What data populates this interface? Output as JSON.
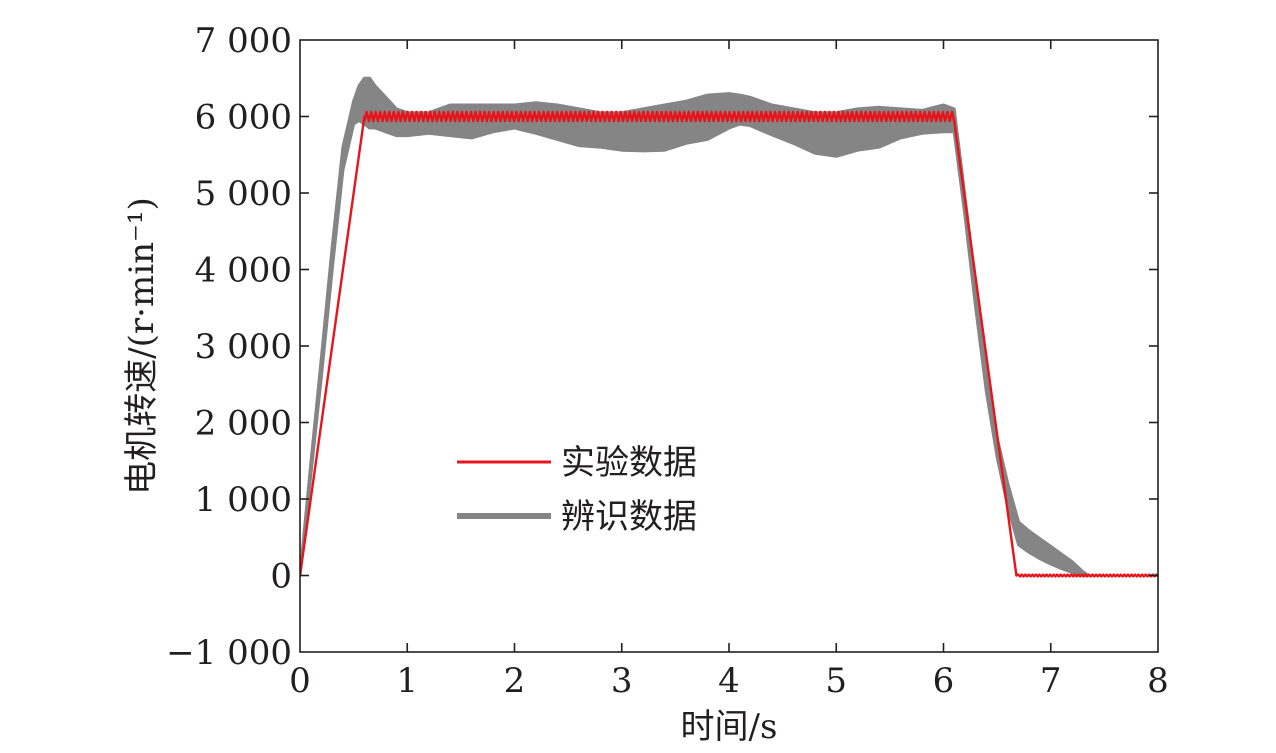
{
  "chart_data": {
    "type": "line",
    "title": "",
    "xlabel": "时间/s",
    "ylabel": "电机转速/(r·min⁻¹)",
    "xlim": [
      0,
      8
    ],
    "ylim": [
      -1000,
      7000
    ],
    "xticks": [
      0,
      1,
      2,
      3,
      4,
      5,
      6,
      7,
      8
    ],
    "yticks": [
      -1000,
      0,
      1000,
      2000,
      3000,
      4000,
      5000,
      6000,
      7000
    ],
    "xtick_labels": [
      "0",
      "1",
      "2",
      "3",
      "4",
      "5",
      "6",
      "7",
      "8"
    ],
    "ytick_labels": [
      "−1 000",
      "0",
      "1 000",
      "2 000",
      "3 000",
      "4 000",
      "5 000",
      "6 000",
      "7 000"
    ],
    "grid": false,
    "legend_position": "center-left",
    "series": [
      {
        "name": "实验数据",
        "color": "#e8141c",
        "style": "line",
        "x": [
          0,
          0.6,
          0.65,
          6.05,
          6.1,
          6.68,
          6.7,
          8.0
        ],
        "y": [
          0,
          6000,
          6000,
          6000,
          6000,
          0,
          0,
          0
        ],
        "ripple": 60
      },
      {
        "name": "辨识数据",
        "color": "#858585",
        "style": "band",
        "x": [
          0,
          0.1,
          0.2,
          0.3,
          0.4,
          0.5,
          0.55,
          0.6,
          0.65,
          0.7,
          0.8,
          0.9,
          1.0,
          1.2,
          1.4,
          1.6,
          1.8,
          2.0,
          2.2,
          2.4,
          2.6,
          2.8,
          3.0,
          3.2,
          3.4,
          3.6,
          3.8,
          4.0,
          4.1,
          4.2,
          4.4,
          4.6,
          4.8,
          5.0,
          5.2,
          5.4,
          5.6,
          5.8,
          6.0,
          6.1,
          6.2,
          6.3,
          6.4,
          6.5,
          6.6,
          6.7,
          6.8,
          6.9,
          7.0,
          7.1,
          7.2,
          7.3,
          7.35
        ],
        "upper": [
          0,
          1450,
          2850,
          4300,
          5600,
          6200,
          6400,
          6500,
          6500,
          6400,
          6250,
          6100,
          6050,
          6050,
          6150,
          6150,
          6150,
          6150,
          6180,
          6150,
          6100,
          6050,
          6050,
          6100,
          6150,
          6200,
          6280,
          6300,
          6280,
          6250,
          6150,
          6100,
          6050,
          6050,
          6100,
          6120,
          6100,
          6080,
          6150,
          6100,
          4950,
          3800,
          2700,
          1800,
          1200,
          700,
          580,
          480,
          380,
          280,
          180,
          50,
          0
        ],
        "lower": [
          0,
          1300,
          2600,
          4000,
          5300,
          5900,
          5950,
          5900,
          5850,
          5850,
          5800,
          5750,
          5750,
          5780,
          5750,
          5720,
          5800,
          5850,
          5780,
          5700,
          5620,
          5600,
          5560,
          5550,
          5560,
          5650,
          5700,
          5850,
          5900,
          5880,
          5760,
          5650,
          5520,
          5480,
          5560,
          5600,
          5720,
          5780,
          5800,
          5800,
          4700,
          3500,
          2400,
          1550,
          900,
          400,
          300,
          220,
          150,
          90,
          40,
          0,
          0
        ]
      }
    ]
  }
}
